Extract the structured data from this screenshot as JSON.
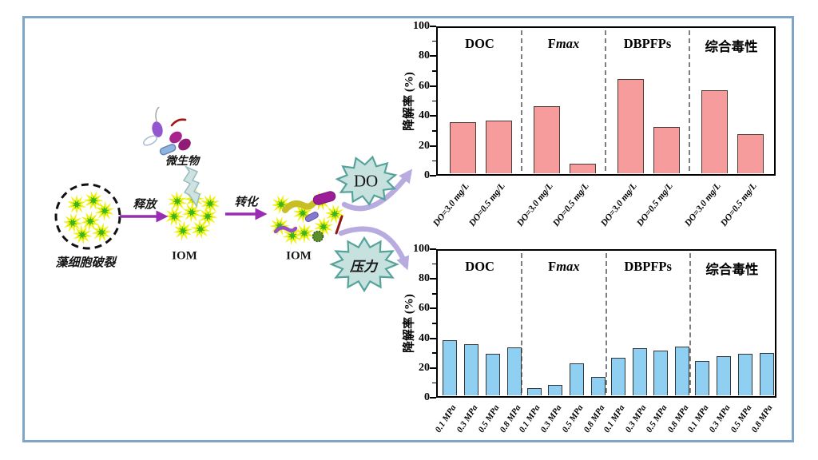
{
  "figure": {
    "border_color": "#7fa6c9",
    "background_color": "#ffffff"
  },
  "diagram": {
    "labels": {
      "algal_cell": "藻细胞破裂",
      "iom1": "IOM",
      "microbes": "微生物",
      "release_arrow": "释放",
      "transform_arrow": "转化",
      "iom2": "IOM",
      "do_burst": "DO",
      "pressure_burst": "压力"
    },
    "icons": {
      "algal-cell-dashed-circle": "black dashed circle enclosing IOM star particles",
      "iom-star-particle": "yellow starburst with green core",
      "lightning-bolt-icon": "pale teal lightning bolt from microbes to IOM",
      "microbe-icons": "purple teardrop, red filament, magenta lobes, blue capsule",
      "release-arrow-icon": "purple right arrow",
      "transform-arrow-icon": "purple right arrow",
      "do-starburst-icon": "teal jagged burst around DO",
      "pressure-starburst-icon": "teal jagged burst around 压力",
      "curved-arrow-to-do-chart": "lavender curved arrow up-right",
      "curved-arrow-to-pressure-chart": "lavender curved arrow down-right"
    },
    "colors": {
      "star_yellow": "#eff011",
      "star_green": "#3db41c",
      "burst_fill": "#c6e1de",
      "burst_stroke": "#55a39a",
      "lavender_arrow": "#b7abdf",
      "purple_arrow": "#9a2bb3",
      "bolt_fill": "#cfe2e2",
      "bolt_stroke": "#95bcbf",
      "circle_stroke": "#111111"
    }
  },
  "chart_data": [
    {
      "type": "bar",
      "name": "do-effect-chart",
      "ylabel": "降解率 (%)",
      "xlabel": "",
      "ylim": [
        0,
        100
      ],
      "yticks": [
        0,
        20,
        40,
        60,
        80,
        100
      ],
      "grid": false,
      "legend_position": "none",
      "sections": [
        "DOC",
        "F*max*",
        "DBPFPs",
        "综合毒性"
      ],
      "categories": [
        "DO=3.0 mg/L",
        "DO=0.5 mg/L",
        "DO=3.0 mg/L",
        "DO=0.5 mg/L",
        "DO=3.0 mg/L",
        "DO=0.5 mg/L",
        "DO=3.0 mg/L",
        "DO=0.5 mg/L"
      ],
      "values": [
        35,
        36,
        46,
        6.5,
        65,
        32,
        57,
        27
      ],
      "bar_fill": "#f79c9c",
      "bar_stroke": "#4a3b35"
    },
    {
      "type": "bar",
      "name": "pressure-effect-chart",
      "ylabel": "降解率 (%)",
      "xlabel": "",
      "ylim": [
        0,
        100
      ],
      "yticks": [
        0,
        20,
        40,
        60,
        80,
        100
      ],
      "grid": false,
      "legend_position": "none",
      "sections": [
        "DOC",
        "F*max*",
        "DBPFPs",
        "综合毒性"
      ],
      "categories": [
        "0.1 MPa",
        "0.3 MPa",
        "0.5 MPa",
        "0.8 MPa",
        "0.1 MPa",
        "0.3 MPa",
        "0.5 MPa",
        "0.8 MPa",
        "0.1 MPa",
        "0.3 MPa",
        "0.5 MPa",
        "0.8 MPa",
        "0.1 MPa",
        "0.3 MPa",
        "0.5 MPa",
        "0.8 MPa"
      ],
      "values": [
        38,
        35.5,
        28.5,
        33,
        4.8,
        7,
        22,
        12.5,
        26,
        32.5,
        31,
        33.5,
        23.5,
        27,
        29,
        29.5
      ],
      "bar_fill": "#8ecff2",
      "bar_stroke": "#33373a"
    }
  ]
}
